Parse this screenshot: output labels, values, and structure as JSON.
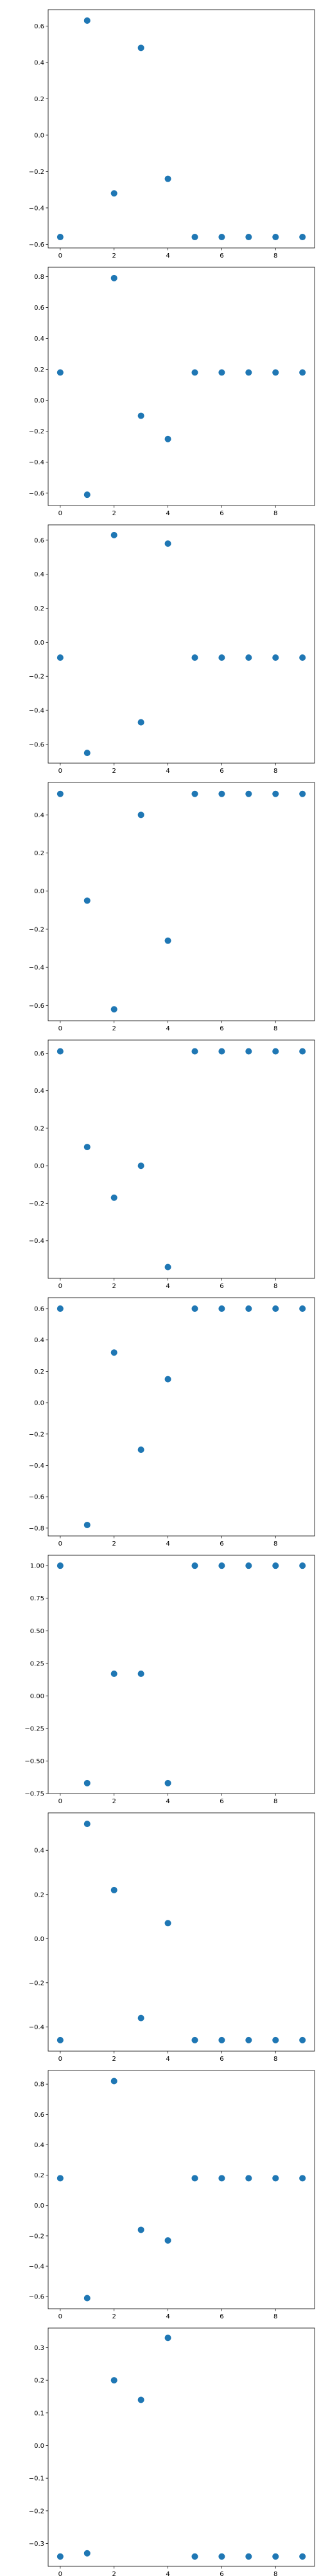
{
  "chart_data": [
    {
      "type": "scatter",
      "x": [
        0,
        1,
        2,
        3,
        4,
        5,
        6,
        7,
        8,
        9
      ],
      "y": [
        -0.56,
        0.63,
        -0.32,
        0.48,
        -0.24,
        -0.56,
        -0.56,
        -0.56,
        -0.56,
        -0.56
      ],
      "xticks": [
        0,
        2,
        4,
        6,
        8
      ],
      "yticks": [
        -0.6,
        -0.4,
        -0.2,
        0.0,
        0.2,
        0.4,
        0.6
      ],
      "ytick_labels": [
        "−0.6",
        "−0.4",
        "−0.2",
        "0.0",
        "0.2",
        "0.4",
        "0.6"
      ],
      "xlim": [
        -0.45,
        9.45
      ],
      "ylim": [
        -0.62,
        0.69
      ],
      "color": "#1f77b4"
    },
    {
      "type": "scatter",
      "x": [
        0,
        1,
        2,
        3,
        4,
        5,
        6,
        7,
        8,
        9
      ],
      "y": [
        0.18,
        -0.61,
        0.79,
        -0.1,
        -0.25,
        0.18,
        0.18,
        0.18,
        0.18,
        0.18
      ],
      "xticks": [
        0,
        2,
        4,
        6,
        8
      ],
      "yticks": [
        -0.6,
        -0.4,
        -0.2,
        0.0,
        0.2,
        0.4,
        0.6,
        0.8
      ],
      "ytick_labels": [
        "−0.6",
        "−0.4",
        "−0.2",
        "0.0",
        "0.2",
        "0.4",
        "0.6",
        "0.8"
      ],
      "xlim": [
        -0.45,
        9.45
      ],
      "ylim": [
        -0.68,
        0.86
      ],
      "color": "#1f77b4"
    },
    {
      "type": "scatter",
      "x": [
        0,
        1,
        2,
        3,
        4,
        5,
        6,
        7,
        8,
        9
      ],
      "y": [
        -0.09,
        -0.65,
        0.63,
        -0.47,
        0.58,
        -0.09,
        -0.09,
        -0.09,
        -0.09,
        -0.09
      ],
      "xticks": [
        0,
        2,
        4,
        6,
        8
      ],
      "yticks": [
        -0.6,
        -0.4,
        -0.2,
        0.0,
        0.2,
        0.4,
        0.6
      ],
      "ytick_labels": [
        "−0.6",
        "−0.4",
        "−0.2",
        "0.0",
        "0.2",
        "0.4",
        "0.6"
      ],
      "xlim": [
        -0.45,
        9.45
      ],
      "ylim": [
        -0.71,
        0.69
      ],
      "color": "#1f77b4"
    },
    {
      "type": "scatter",
      "x": [
        0,
        1,
        2,
        3,
        4,
        5,
        6,
        7,
        8,
        9
      ],
      "y": [
        0.51,
        -0.05,
        -0.62,
        0.4,
        -0.26,
        0.51,
        0.51,
        0.51,
        0.51,
        0.51
      ],
      "xticks": [
        0,
        2,
        4,
        6,
        8
      ],
      "yticks": [
        -0.6,
        -0.4,
        -0.2,
        0.0,
        0.2,
        0.4
      ],
      "ytick_labels": [
        "−0.6",
        "−0.4",
        "−0.2",
        "0.0",
        "0.2",
        "0.4"
      ],
      "xlim": [
        -0.45,
        9.45
      ],
      "ylim": [
        -0.68,
        0.57
      ],
      "color": "#1f77b4"
    },
    {
      "type": "scatter",
      "x": [
        0,
        1,
        2,
        3,
        4,
        5,
        6,
        7,
        8,
        9
      ],
      "y": [
        0.61,
        0.1,
        -0.17,
        0.0,
        -0.54,
        0.61,
        0.61,
        0.61,
        0.61,
        0.61
      ],
      "xticks": [
        0,
        2,
        4,
        6,
        8
      ],
      "yticks": [
        -0.4,
        -0.2,
        0.0,
        0.2,
        0.4,
        0.6
      ],
      "ytick_labels": [
        "−0.4",
        "−0.2",
        "0.0",
        "0.2",
        "0.4",
        "0.6"
      ],
      "xlim": [
        -0.45,
        9.45
      ],
      "ylim": [
        -0.6,
        0.67
      ],
      "color": "#1f77b4"
    },
    {
      "type": "scatter",
      "x": [
        0,
        1,
        2,
        3,
        4,
        5,
        6,
        7,
        8,
        9
      ],
      "y": [
        0.6,
        -0.78,
        0.32,
        -0.3,
        0.15,
        0.6,
        0.6,
        0.6,
        0.6,
        0.6
      ],
      "xticks": [
        0,
        2,
        4,
        6,
        8
      ],
      "yticks": [
        -0.8,
        -0.6,
        -0.4,
        -0.2,
        0.0,
        0.2,
        0.4,
        0.6
      ],
      "ytick_labels": [
        "−0.8",
        "−0.6",
        "−0.4",
        "−0.2",
        "0.0",
        "0.2",
        "0.4",
        "0.6"
      ],
      "xlim": [
        -0.45,
        9.45
      ],
      "ylim": [
        -0.85,
        0.67
      ],
      "color": "#1f77b4"
    },
    {
      "type": "scatter",
      "x": [
        0,
        1,
        2,
        3,
        4,
        5,
        6,
        7,
        8,
        9
      ],
      "y": [
        1.0,
        -0.67,
        0.17,
        0.17,
        -0.67,
        1.0,
        1.0,
        1.0,
        1.0,
        1.0
      ],
      "xticks": [
        0,
        2,
        4,
        6,
        8
      ],
      "yticks": [
        -0.75,
        -0.5,
        -0.25,
        0.0,
        0.25,
        0.5,
        0.75,
        1.0
      ],
      "ytick_labels": [
        "−0.75",
        "−0.50",
        "−0.25",
        "0.00",
        "0.25",
        "0.50",
        "0.75",
        "1.00"
      ],
      "xlim": [
        -0.45,
        9.45
      ],
      "ylim": [
        -0.75,
        1.08
      ],
      "color": "#1f77b4"
    },
    {
      "type": "scatter",
      "x": [
        0,
        1,
        2,
        3,
        4,
        5,
        6,
        7,
        8,
        9
      ],
      "y": [
        -0.46,
        0.52,
        0.22,
        -0.36,
        0.07,
        -0.46,
        -0.46,
        -0.46,
        -0.46,
        -0.46
      ],
      "xticks": [
        0,
        2,
        4,
        6,
        8
      ],
      "yticks": [
        -0.4,
        -0.2,
        0.0,
        0.2,
        0.4
      ],
      "ytick_labels": [
        "−0.4",
        "−0.2",
        "0.0",
        "0.2",
        "0.4"
      ],
      "xlim": [
        -0.45,
        9.45
      ],
      "ylim": [
        -0.51,
        0.57
      ],
      "color": "#1f77b4"
    },
    {
      "type": "scatter",
      "x": [
        0,
        1,
        2,
        3,
        4,
        5,
        6,
        7,
        8,
        9
      ],
      "y": [
        0.18,
        -0.61,
        0.82,
        -0.16,
        -0.23,
        0.18,
        0.18,
        0.18,
        0.18,
        0.18
      ],
      "xticks": [
        0,
        2,
        4,
        6,
        8
      ],
      "yticks": [
        -0.6,
        -0.4,
        -0.2,
        0.0,
        0.2,
        0.4,
        0.6,
        0.8
      ],
      "ytick_labels": [
        "−0.6",
        "−0.4",
        "−0.2",
        "0.0",
        "0.2",
        "0.4",
        "0.6",
        "0.8"
      ],
      "xlim": [
        -0.45,
        9.45
      ],
      "ylim": [
        -0.68,
        0.89
      ],
      "color": "#1f77b4"
    },
    {
      "type": "scatter",
      "x": [
        0,
        1,
        2,
        3,
        4,
        5,
        6,
        7,
        8,
        9
      ],
      "y": [
        -0.34,
        -0.33,
        0.2,
        0.14,
        0.33,
        -0.34,
        -0.34,
        -0.34,
        -0.34,
        -0.34
      ],
      "xticks": [
        0,
        2,
        4,
        6,
        8
      ],
      "yticks": [
        -0.3,
        -0.2,
        -0.1,
        0.0,
        0.1,
        0.2,
        0.3
      ],
      "ytick_labels": [
        "−0.3",
        "−0.2",
        "−0.1",
        "0.0",
        "0.1",
        "0.2",
        "0.3"
      ],
      "xlim": [
        -0.45,
        9.45
      ],
      "ylim": [
        -0.37,
        0.36
      ],
      "color": "#1f77b4"
    }
  ]
}
